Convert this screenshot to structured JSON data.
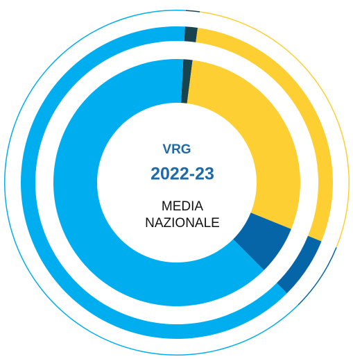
{
  "chart_data": {
    "type": "donut",
    "title": "VRG",
    "subtitle": "2022-23",
    "caption": [
      "MEDIA",
      "NAZIONALE"
    ],
    "colors": [
      "#17444f",
      "#fecf33",
      "#0665a6",
      "#00aeef"
    ],
    "series": [
      {
        "values": [
          1.2,
          29.1,
          6.4,
          63.3
        ]
      },
      {
        "values": [
          1.3,
          29.0,
          6.4,
          63.3
        ]
      },
      {
        "values": [
          1.3,
          29.0,
          6.4,
          63.3
        ]
      }
    ]
  }
}
